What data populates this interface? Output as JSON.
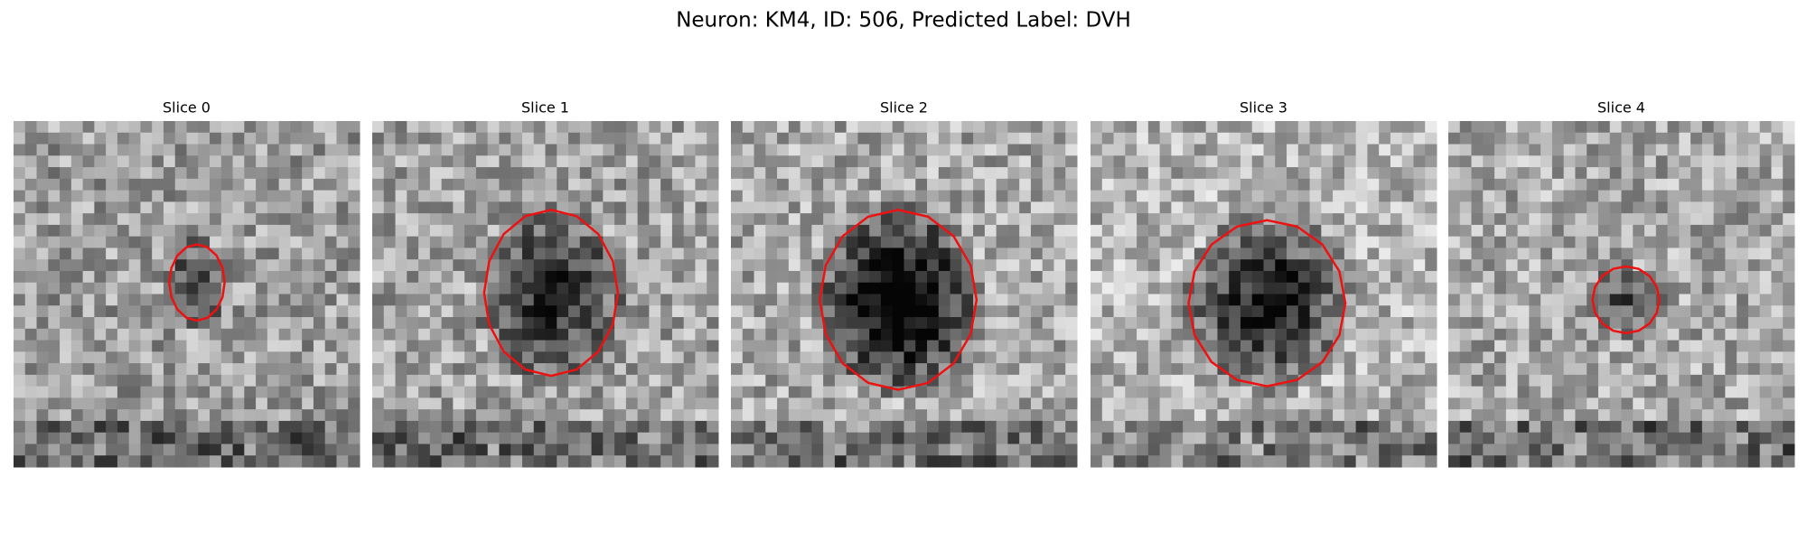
{
  "figure": {
    "title": "Neuron: KM4, ID: 506, Predicted Label: DVH",
    "panels": [
      {
        "label": "Slice 0"
      },
      {
        "label": "Slice 1"
      },
      {
        "label": "Slice 2"
      },
      {
        "label": "Slice 3"
      },
      {
        "label": "Slice 4"
      }
    ]
  }
}
